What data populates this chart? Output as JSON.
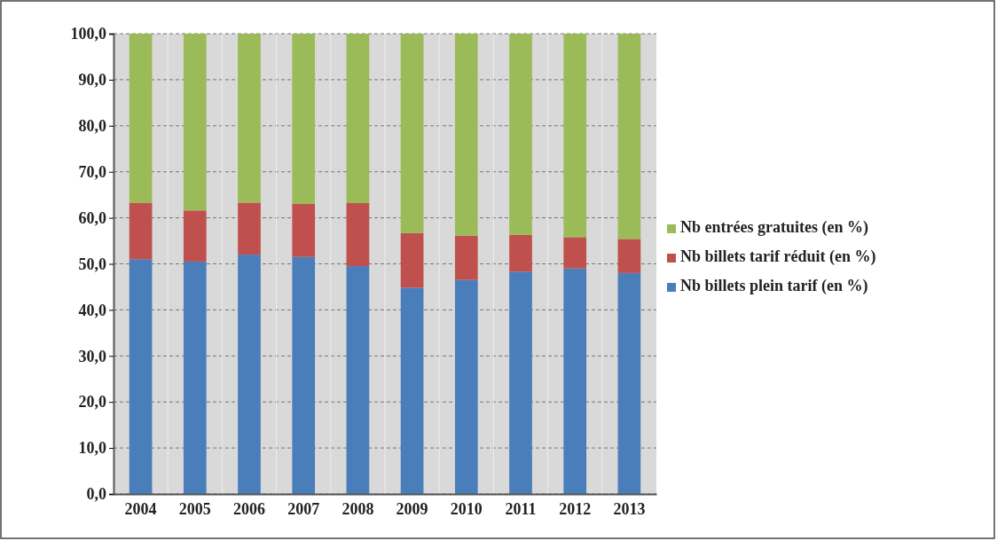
{
  "chart_data": {
    "type": "bar",
    "stacked": true,
    "categories": [
      "2004",
      "2005",
      "2006",
      "2007",
      "2008",
      "2009",
      "2010",
      "2011",
      "2012",
      "2013"
    ],
    "series": [
      {
        "name": "Nb billets plein tarif (en %)",
        "color": "#4a7ebb",
        "values": [
          51.0,
          50.5,
          52.0,
          51.5,
          49.5,
          44.8,
          46.5,
          48.3,
          49.0,
          48.0
        ]
      },
      {
        "name": "Nb billets tarif réduit (en %)",
        "color": "#c0504d",
        "values": [
          12.2,
          11.1,
          11.3,
          11.5,
          13.7,
          11.9,
          9.6,
          8.0,
          6.8,
          7.4
        ]
      },
      {
        "name": "Nb entrées gratuites (en %)",
        "color": "#9bbb59",
        "values": [
          36.8,
          38.4,
          36.7,
          37.0,
          36.8,
          43.3,
          43.9,
          43.7,
          44.2,
          44.6
        ]
      }
    ],
    "ylim": [
      0,
      100
    ],
    "yticks": [
      {
        "value": 0,
        "label": "0,0"
      },
      {
        "value": 10,
        "label": "10,0"
      },
      {
        "value": 20,
        "label": "20,0"
      },
      {
        "value": 30,
        "label": "30,0"
      },
      {
        "value": 40,
        "label": "40,0"
      },
      {
        "value": 50,
        "label": "50,0"
      },
      {
        "value": 60,
        "label": "60,0"
      },
      {
        "value": 70,
        "label": "70,0"
      },
      {
        "value": 80,
        "label": "80,0"
      },
      {
        "value": 90,
        "label": "90,0"
      },
      {
        "value": 100,
        "label": "100,0"
      }
    ],
    "grid": "y",
    "legend": "right"
  }
}
